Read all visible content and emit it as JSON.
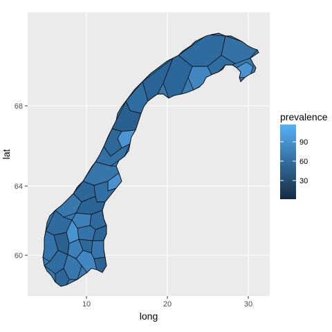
{
  "chart_data": {
    "type": "choropleth-map",
    "title": "",
    "xlabel": "long",
    "ylabel": "lat",
    "xlim": [
      3.3,
      32.5
    ],
    "ylim": [
      57.5,
      72.0
    ],
    "x_ticks": [
      10,
      20,
      30
    ],
    "y_ticks": [
      60,
      64,
      68
    ],
    "grid": true,
    "fill_variable": "prevalence",
    "legend": {
      "title": "prevalence",
      "position": "right",
      "ticks": [
        30,
        60,
        90
      ],
      "range": [
        0,
        115
      ],
      "low_color": "#132B43",
      "high_color": "#56B1F7"
    },
    "region_fill_values": [
      42,
      55,
      60,
      68,
      75,
      80,
      88,
      95
    ]
  },
  "colors": {
    "panel_background": "#ebebeb",
    "grid_major": "#ffffff",
    "region_border": "#000000",
    "land": "#3a78ab"
  }
}
